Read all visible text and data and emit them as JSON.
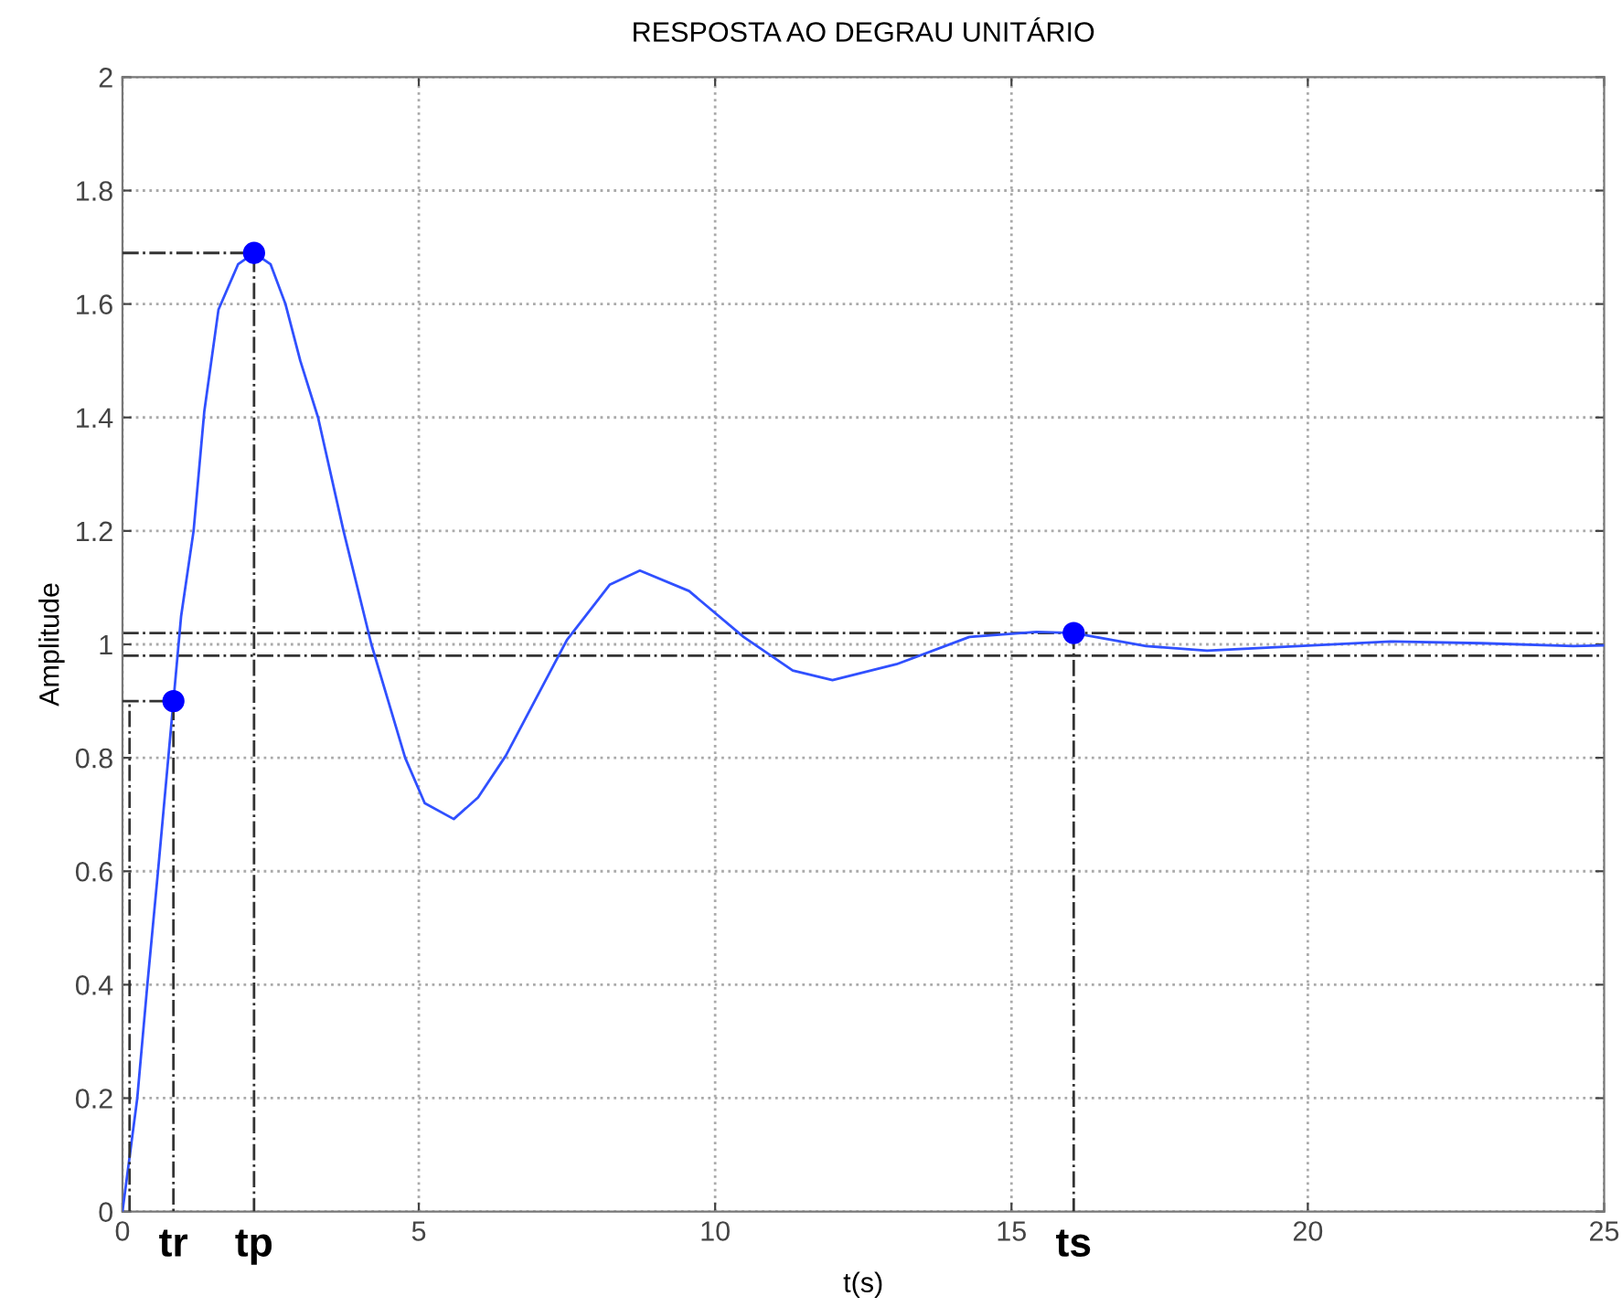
{
  "chart_data": {
    "type": "line",
    "title": "RESPOSTA AO DEGRAU UNITÁRIO",
    "xlabel": "t(s)",
    "ylabel": "Amplitude",
    "xlim": [
      0,
      25
    ],
    "xticks": [
      0,
      5,
      10,
      15,
      20,
      25
    ],
    "ylim": [
      0,
      2
    ],
    "yticks": [
      0,
      0.2,
      0.4,
      0.6,
      0.8,
      1,
      1.2,
      1.4,
      1.6,
      1.8,
      2
    ],
    "grid": true,
    "legend": false,
    "series": [
      {
        "color": "#3050ff",
        "line_style": "solid",
        "marker": "none",
        "x": [
          0,
          0.25,
          0.42,
          0.6,
          0.86,
          0.99,
          1.2,
          1.38,
          1.62,
          1.95,
          2.22,
          2.5,
          2.75,
          3.0,
          3.3,
          3.73,
          4.2,
          4.77,
          5.1,
          5.59,
          6.0,
          6.47,
          7.5,
          8.22,
          8.73,
          9.56,
          10.48,
          11.31,
          11.98,
          13.06,
          14.29,
          15.42,
          16.05,
          17.27,
          18.3,
          19.85,
          21.39,
          22.93,
          24.48,
          25
        ],
        "values": [
          0,
          0.2,
          0.4,
          0.6,
          0.9,
          1.05,
          1.2,
          1.41,
          1.59,
          1.67,
          1.69,
          1.67,
          1.6,
          1.5,
          1.4,
          1.2,
          1.0,
          0.8,
          0.72,
          0.692,
          0.73,
          0.804,
          1.008,
          1.105,
          1.13,
          1.094,
          1.013,
          0.954,
          0.937,
          0.965,
          1.013,
          1.022,
          1.02,
          0.997,
          0.989,
          0.997,
          1.005,
          1.002,
          0.997,
          0.998
        ]
      },
      {
        "type": "scatter",
        "color": "#0000ff",
        "marker": "circle",
        "x": [
          0.86,
          2.22,
          16.05
        ],
        "values": [
          0.9,
          1.69,
          1.02
        ]
      },
      {
        "color": "#333333",
        "line_style": "dashdot",
        "marker": "none",
        "x": [
          0,
          0.86,
          0.86
        ],
        "values": [
          0.9,
          0.9,
          0
        ]
      },
      {
        "color": "#333333",
        "line_style": "dashdot",
        "marker": "none",
        "x": [
          0.12,
          0.12
        ],
        "values": [
          0,
          0.9
        ]
      },
      {
        "color": "#333333",
        "line_style": "dashdot",
        "marker": "none",
        "x": [
          0,
          2.22,
          2.22
        ],
        "values": [
          1.69,
          1.69,
          0
        ]
      },
      {
        "color": "#333333",
        "line_style": "dashdot",
        "marker": "none",
        "x": [
          16.05,
          16.05
        ],
        "values": [
          1.02,
          0
        ]
      }
    ],
    "ref_lines": [
      {
        "axis": "y",
        "value": 1.02,
        "color": "#333333",
        "line_style": "dashdot"
      },
      {
        "axis": "y",
        "value": 0.98,
        "color": "#333333",
        "line_style": "dashdot"
      }
    ],
    "annotations": [
      {
        "text": "tr",
        "x": 0.86,
        "y": 0
      },
      {
        "text": "tp",
        "x": 2.22,
        "y": 0
      },
      {
        "text": "ts",
        "x": 16.05,
        "y": 0
      }
    ]
  }
}
